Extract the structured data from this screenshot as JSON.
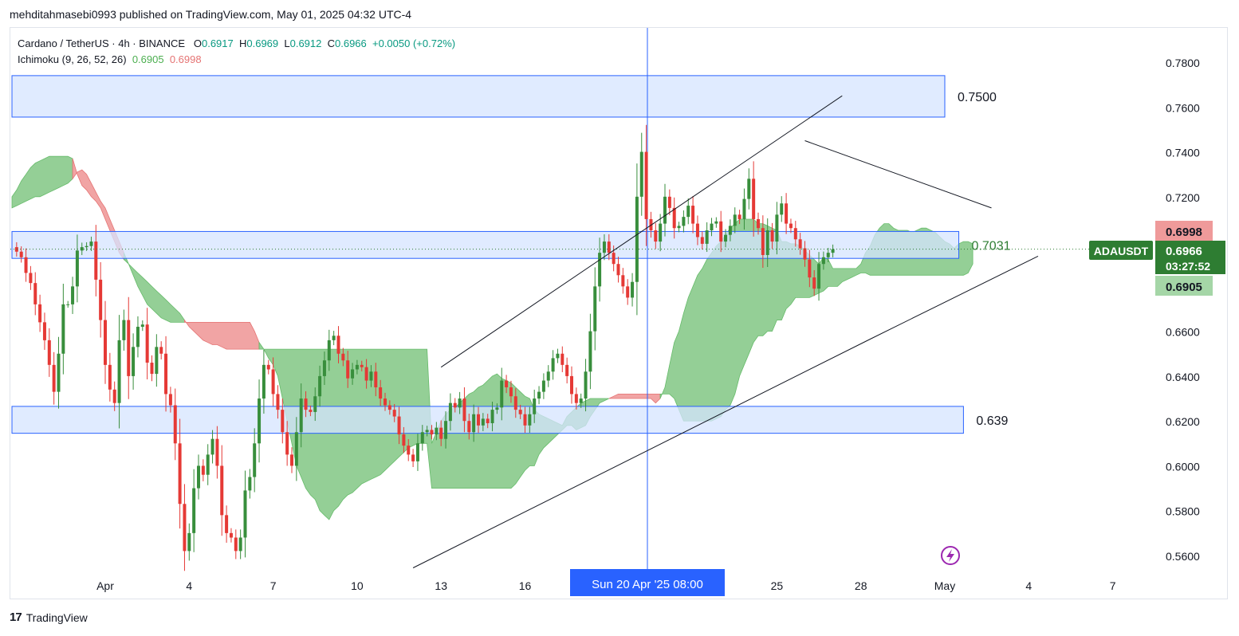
{
  "header": {
    "published_line": "mehditahmasebi0993 published on TradingView.com, May 01, 2025 04:32 UTC-4"
  },
  "legend": {
    "symbol": "Cardano / TetherUS · 4h · BINANCE",
    "open_label": "O",
    "open": "0.6917",
    "high_label": "H",
    "high": "0.6969",
    "low_label": "L",
    "low": "0.6912",
    "close_label": "C",
    "close": "0.6966",
    "change": "+0.0050 (+0.72%)",
    "indicator": "Ichimoku (9, 26, 52, 26)",
    "indicator_value_1": "0.6905",
    "indicator_value_2": "0.6998"
  },
  "footer": {
    "logo": "17",
    "brand": "TradingView"
  },
  "colors": {
    "bull": "#26a69a",
    "bull_candle": "#388e3c",
    "bear_candle": "#e53935",
    "cloud_bull": "#81c784",
    "cloud_bear": "#ef9a9a",
    "zone_fill": "#d6e4ff",
    "zone_border": "#2962ff",
    "symbol_badge": "#2e7d32",
    "cursor_line": "#2962ff"
  },
  "chart_data": {
    "type": "candlestick",
    "symbol_badge": "ADAUSDT",
    "last_price": "0.6966",
    "countdown": "03:27:52",
    "cloud_top_label": "0.6998",
    "cloud_bottom_label": "0.6905",
    "crosshair_label": "Sun 20 Apr '25   08:00",
    "y_ticks": [
      "0.7800",
      "0.7600",
      "0.7400",
      "0.7200",
      "0.6998",
      "0.6600",
      "0.6400",
      "0.6200",
      "0.6000",
      "0.5800",
      "0.5600"
    ],
    "y_tick_values": [
      0.78,
      0.76,
      0.74,
      0.72,
      0.7,
      0.66,
      0.64,
      0.62,
      0.6,
      0.58,
      0.56
    ],
    "ylim": [
      0.553,
      0.793
    ],
    "x_ticks": [
      {
        "label": "Apr",
        "bar": 0
      },
      {
        "label": "4",
        "bar": 18
      },
      {
        "label": "7",
        "bar": 36
      },
      {
        "label": "10",
        "bar": 54
      },
      {
        "label": "13",
        "bar": 72
      },
      {
        "label": "16",
        "bar": 90
      },
      {
        "label": "25",
        "bar": 144
      },
      {
        "label": "28",
        "bar": 162
      },
      {
        "label": "May",
        "bar": 180
      },
      {
        "label": "4",
        "bar": 198
      },
      {
        "label": "7",
        "bar": 216
      }
    ],
    "zones": [
      {
        "label": "0.7500",
        "top": 0.774,
        "bottom": 0.7555,
        "bar_start": -20,
        "bar_end": 180
      },
      {
        "label": "0.7031",
        "top": 0.7045,
        "bottom": 0.6925,
        "bar_start": -20,
        "bar_end": 183
      },
      {
        "label": "0.639",
        "top": 0.6265,
        "bottom": 0.6145,
        "bar_start": -20,
        "bar_end": 184
      }
    ],
    "trendlines": [
      {
        "p1": {
          "bar": 66,
          "value": 0.5545
        },
        "p2": {
          "bar": 164,
          "value": 0.6565
        },
        "p3": {
          "bar": 200,
          "value": 0.6935
        }
      },
      {
        "p1": {
          "bar": 72,
          "value": 0.644
        },
        "p2": {
          "bar": 158,
          "value": 0.765
        }
      },
      {
        "p1": {
          "bar": 150,
          "value": 0.745
        },
        "p2": {
          "bar": 190,
          "value": 0.715
        }
      }
    ],
    "ohlc_path": [
      0.6975,
      0.6955,
      0.693,
      0.686,
      0.6815,
      0.672,
      0.664,
      0.656,
      0.645,
      0.633,
      0.65,
      0.672,
      0.672,
      0.68,
      0.696,
      0.6975,
      0.698,
      0.7,
      0.683,
      0.665,
      0.645,
      0.634,
      0.628,
      0.656,
      0.665,
      0.64,
      0.653,
      0.662,
      0.663,
      0.646,
      0.641,
      0.653,
      0.65,
      0.632,
      0.627,
      0.61,
      0.583,
      0.562,
      0.57,
      0.59,
      0.6,
      0.596,
      0.605,
      0.612,
      0.6,
      0.578,
      0.57,
      0.568,
      0.562,
      0.568,
      0.589,
      0.595,
      0.61,
      0.63,
      0.645,
      0.643,
      0.632,
      0.625,
      0.615,
      0.605,
      0.6,
      0.615,
      0.63,
      0.625,
      0.624,
      0.631,
      0.64,
      0.647,
      0.656,
      0.658,
      0.65,
      0.647,
      0.639,
      0.643,
      0.645,
      0.644,
      0.638,
      0.642,
      0.635,
      0.63,
      0.627,
      0.625,
      0.622,
      0.614,
      0.609,
      0.605,
      0.602,
      0.61,
      0.615,
      0.616,
      0.614,
      0.617,
      0.612,
      0.62,
      0.628,
      0.626,
      0.63,
      0.62,
      0.615,
      0.623,
      0.618,
      0.621,
      0.619,
      0.625,
      0.626,
      0.638,
      0.635,
      0.631,
      0.625,
      0.623,
      0.618,
      0.623,
      0.63,
      0.633,
      0.638,
      0.642,
      0.648,
      0.65,
      0.645,
      0.64,
      0.632,
      0.628,
      0.63,
      0.642,
      0.66,
      0.68,
      0.695,
      0.7,
      0.695,
      0.69,
      0.685,
      0.68,
      0.675,
      0.682,
      0.72,
      0.74,
      0.71,
      0.705,
      0.7,
      0.708,
      0.72,
      0.715,
      0.706,
      0.707,
      0.711,
      0.716,
      0.708,
      0.702,
      0.699,
      0.705,
      0.708,
      0.709,
      0.7,
      0.703,
      0.707,
      0.712,
      0.71,
      0.719,
      0.728,
      0.71,
      0.706,
      0.694,
      0.705,
      0.7,
      0.712,
      0.717,
      0.708,
      0.706,
      0.701,
      0.697,
      0.692,
      0.684,
      0.679,
      0.69,
      0.693,
      0.695,
      0.6966
    ],
    "cloud_a": [
      0.72,
      0.723,
      0.727,
      0.73,
      0.733,
      0.735,
      0.736,
      0.737,
      0.738,
      0.738,
      0.738,
      0.738,
      0.738,
      0.737,
      0.73,
      0.725,
      0.723,
      0.72,
      0.718,
      0.715,
      0.71,
      0.705,
      0.7,
      0.695,
      0.692,
      0.69,
      0.688,
      0.686,
      0.684,
      0.682,
      0.68,
      0.678,
      0.676,
      0.674,
      0.672,
      0.67,
      0.668,
      0.665,
      0.662,
      0.66,
      0.658,
      0.656,
      0.655,
      0.654,
      0.654,
      0.653,
      0.652,
      0.652,
      0.652,
      0.652,
      0.652,
      0.652,
      0.652,
      0.652,
      0.652,
      0.652,
      0.652,
      0.652,
      0.652,
      0.652,
      0.652,
      0.652,
      0.652,
      0.652,
      0.652,
      0.652,
      0.652,
      0.652,
      0.652,
      0.652,
      0.652,
      0.652,
      0.652,
      0.652,
      0.652,
      0.652,
      0.652,
      0.652,
      0.652,
      0.652,
      0.652,
      0.652,
      0.652,
      0.652,
      0.652,
      0.652,
      0.652,
      0.652,
      0.652,
      0.652,
      0.61,
      0.615,
      0.62,
      0.623,
      0.625,
      0.626,
      0.628,
      0.63,
      0.632,
      0.633,
      0.635,
      0.636,
      0.638,
      0.64,
      0.641,
      0.639,
      0.638,
      0.637,
      0.635,
      0.633,
      0.631,
      0.63,
      0.625,
      0.623,
      0.622,
      0.621,
      0.62,
      0.619,
      0.618,
      0.622,
      0.624,
      0.626,
      0.628,
      0.629,
      0.63,
      0.63,
      0.63,
      0.63,
      0.63,
      0.63,
      0.63,
      0.63,
      0.63,
      0.63,
      0.63,
      0.63,
      0.63,
      0.63,
      0.628,
      0.63,
      0.635,
      0.645,
      0.655,
      0.66,
      0.668,
      0.675,
      0.68,
      0.685,
      0.688,
      0.692,
      0.695,
      0.698,
      0.7,
      0.703,
      0.706,
      0.708,
      0.71,
      0.71,
      0.71,
      0.71,
      0.708,
      0.708,
      0.707,
      0.706,
      0.705,
      0.7,
      0.7,
      0.699,
      0.699,
      0.698,
      0.696,
      0.694,
      0.692,
      0.69,
      0.693,
      0.692,
      0.688,
      0.688,
      0.688,
      0.688,
      0.688,
      0.688,
      0.69,
      0.695,
      0.698,
      0.703,
      0.706,
      0.708,
      0.708,
      0.706,
      0.705,
      0.705,
      0.705,
      0.704,
      0.705,
      0.706,
      0.706,
      0.705,
      0.704,
      0.702,
      0.7,
      0.699,
      0.697,
      0.699,
      0.7,
      0.7,
      0.699
    ],
    "cloud_b": [
      0.715,
      0.716,
      0.717,
      0.718,
      0.719,
      0.72,
      0.72,
      0.721,
      0.722,
      0.723,
      0.724,
      0.725,
      0.726,
      0.728,
      0.731,
      0.732,
      0.73,
      0.726,
      0.722,
      0.718,
      0.715,
      0.71,
      0.705,
      0.7,
      0.695,
      0.69,
      0.685,
      0.68,
      0.676,
      0.672,
      0.67,
      0.668,
      0.666,
      0.665,
      0.664,
      0.664,
      0.664,
      0.664,
      0.664,
      0.664,
      0.664,
      0.664,
      0.664,
      0.664,
      0.664,
      0.664,
      0.664,
      0.664,
      0.664,
      0.664,
      0.664,
      0.664,
      0.66,
      0.655,
      0.652,
      0.648,
      0.645,
      0.64,
      0.63,
      0.62,
      0.61,
      0.6,
      0.595,
      0.59,
      0.587,
      0.585,
      0.58,
      0.578,
      0.576,
      0.58,
      0.582,
      0.585,
      0.587,
      0.588,
      0.59,
      0.592,
      0.593,
      0.594,
      0.595,
      0.596,
      0.598,
      0.6,
      0.602,
      0.604,
      0.606,
      0.608,
      0.609,
      0.61,
      0.61,
      0.61,
      0.59,
      0.59,
      0.59,
      0.59,
      0.59,
      0.59,
      0.59,
      0.59,
      0.59,
      0.59,
      0.59,
      0.59,
      0.59,
      0.59,
      0.59,
      0.59,
      0.59,
      0.59,
      0.592,
      0.595,
      0.598,
      0.6,
      0.6,
      0.605,
      0.608,
      0.61,
      0.612,
      0.614,
      0.616,
      0.618,
      0.618,
      0.616,
      0.617,
      0.618,
      0.622,
      0.625,
      0.628,
      0.629,
      0.63,
      0.631,
      0.632,
      0.632,
      0.632,
      0.632,
      0.632,
      0.632,
      0.632,
      0.632,
      0.632,
      0.632,
      0.632,
      0.632,
      0.63,
      0.625,
      0.62,
      0.62,
      0.62,
      0.62,
      0.62,
      0.62,
      0.62,
      0.621,
      0.622,
      0.625,
      0.627,
      0.632,
      0.64,
      0.645,
      0.65,
      0.655,
      0.658,
      0.658,
      0.66,
      0.66,
      0.665,
      0.665,
      0.67,
      0.672,
      0.675,
      0.675,
      0.675,
      0.675,
      0.676,
      0.677,
      0.678,
      0.68,
      0.68,
      0.68,
      0.682,
      0.683,
      0.684,
      0.685,
      0.686,
      0.686,
      0.685,
      0.685,
      0.685,
      0.685,
      0.685,
      0.685,
      0.685,
      0.685,
      0.685,
      0.685,
      0.685,
      0.685,
      0.685,
      0.685,
      0.685,
      0.685,
      0.685,
      0.685,
      0.685,
      0.685,
      0.685,
      0.686,
      0.69,
      0.694,
      0.696
    ]
  }
}
